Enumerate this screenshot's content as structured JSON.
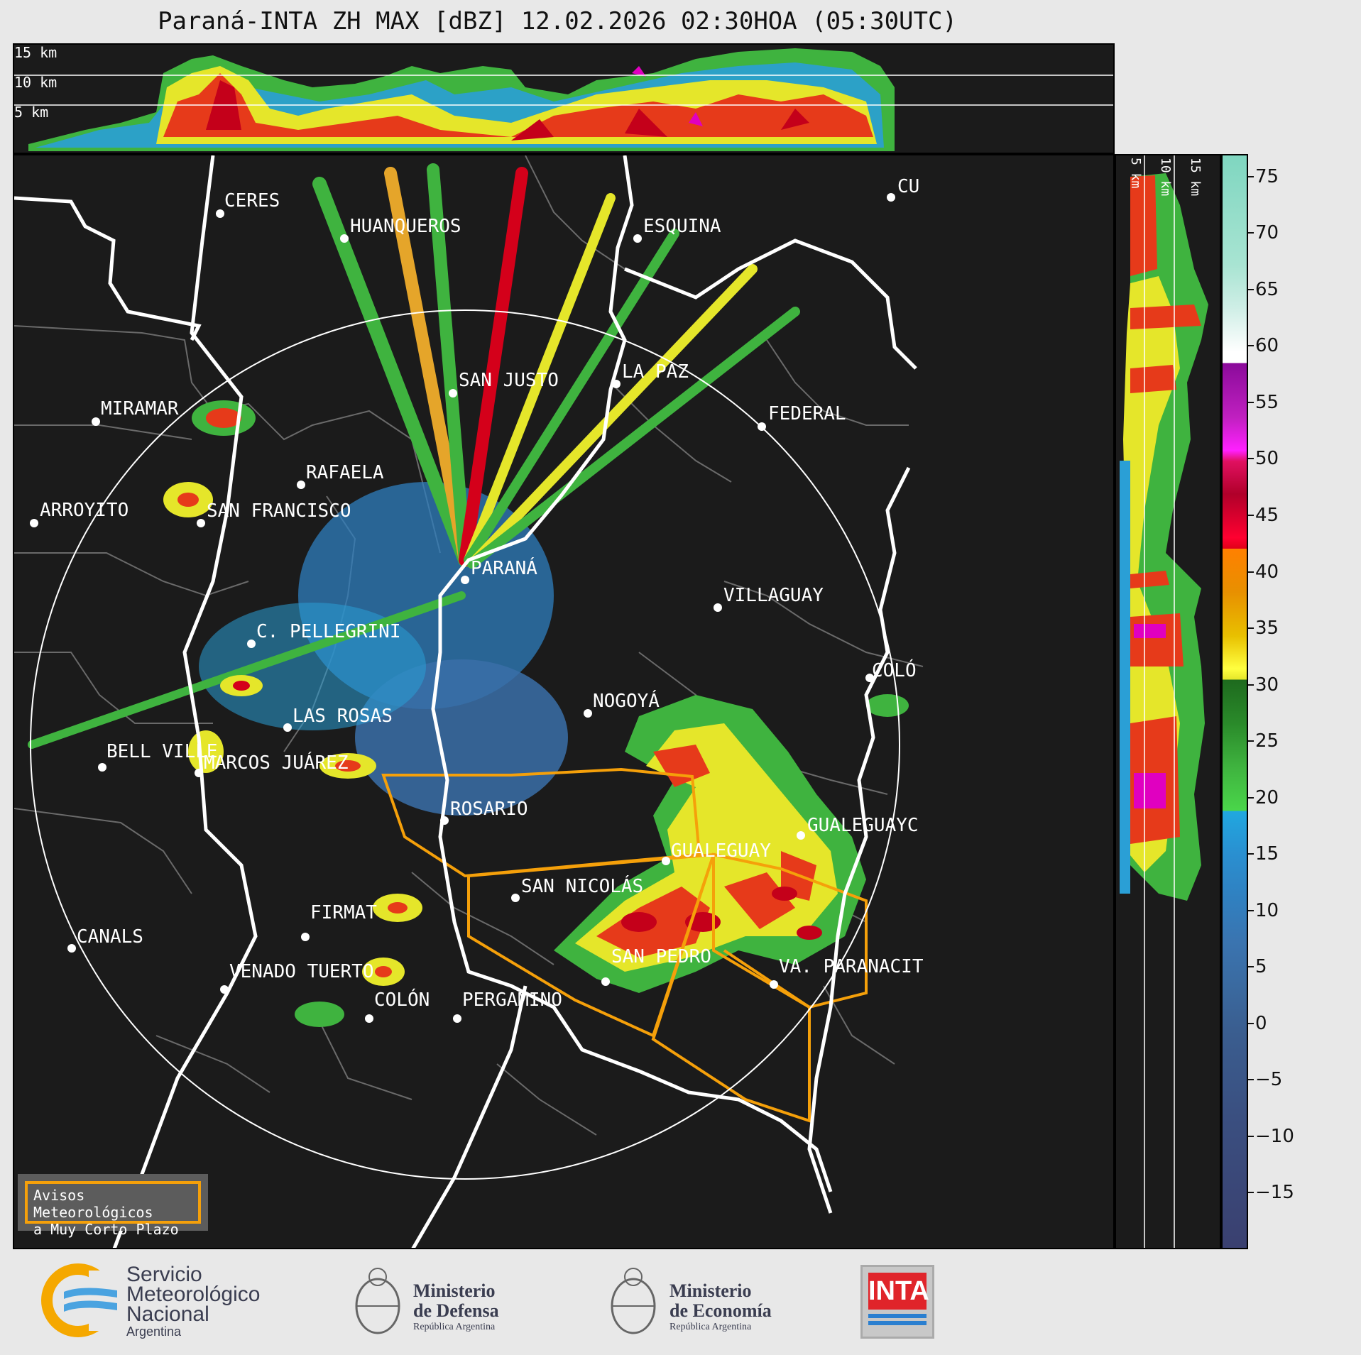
{
  "title": "Paraná-INTA ZH MAX [dBZ] 12.02.2026 02:30HOA (05:30UTC)",
  "top_panel": {
    "height_labels": [
      "15 km",
      "10 km",
      "5 km"
    ]
  },
  "side_panel": {
    "height_labels": [
      "5 km",
      "10 km",
      "15 km"
    ]
  },
  "colorbar": {
    "ticks": [
      "75",
      "70",
      "65",
      "60",
      "55",
      "50",
      "45",
      "40",
      "35",
      "30",
      "25",
      "20",
      "15",
      "10",
      "5",
      "0",
      "−5",
      "−10",
      "−15"
    ],
    "range_dbz": [
      -20,
      77
    ]
  },
  "cities": [
    {
      "name": "CERES"
    },
    {
      "name": "HUANQUEROS"
    },
    {
      "name": "ESQUINA"
    },
    {
      "name": "CU"
    },
    {
      "name": "MIRAMAR"
    },
    {
      "name": "SAN JUSTO"
    },
    {
      "name": "LA PAZ"
    },
    {
      "name": "FEDERAL"
    },
    {
      "name": "RAFAELA"
    },
    {
      "name": "ARROYITO"
    },
    {
      "name": "SAN FRANCISCO"
    },
    {
      "name": "PARANÁ"
    },
    {
      "name": "VILLAGUAY"
    },
    {
      "name": "C. PELLEGRINI"
    },
    {
      "name": "COLÓ"
    },
    {
      "name": "NOGOYÁ"
    },
    {
      "name": "LAS ROSAS"
    },
    {
      "name": "BELL VILLE"
    },
    {
      "name": "MARCOS JUÁREZ"
    },
    {
      "name": "ROSARIO"
    },
    {
      "name": "GUALEGUAYC"
    },
    {
      "name": "GUALEGUAY"
    },
    {
      "name": "SAN NICOLÁS"
    },
    {
      "name": "FIRMAT"
    },
    {
      "name": "CANALS"
    },
    {
      "name": "SAN PEDRO"
    },
    {
      "name": "VA. PARANACIT"
    },
    {
      "name": "VENADO TUERTO"
    },
    {
      "name": "COLÓN"
    },
    {
      "name": "PERGAMINO"
    }
  ],
  "legend_box": {
    "line1": "Avisos Meteorológicos",
    "line2": "a Muy Corto Plazo",
    "color": "#f5a00a"
  },
  "logos": {
    "smn": {
      "line1": "Servicio",
      "line2": "Meteorológico",
      "line3": "Nacional",
      "line4": "Argentina"
    },
    "defensa": {
      "line1": "Ministerio",
      "line2": "de Defensa",
      "line3": "República Argentina"
    },
    "economia": {
      "line1": "Ministerio",
      "line2": "de Economía",
      "line3": "República Argentina"
    },
    "inta": {
      "text": "INTA"
    }
  }
}
